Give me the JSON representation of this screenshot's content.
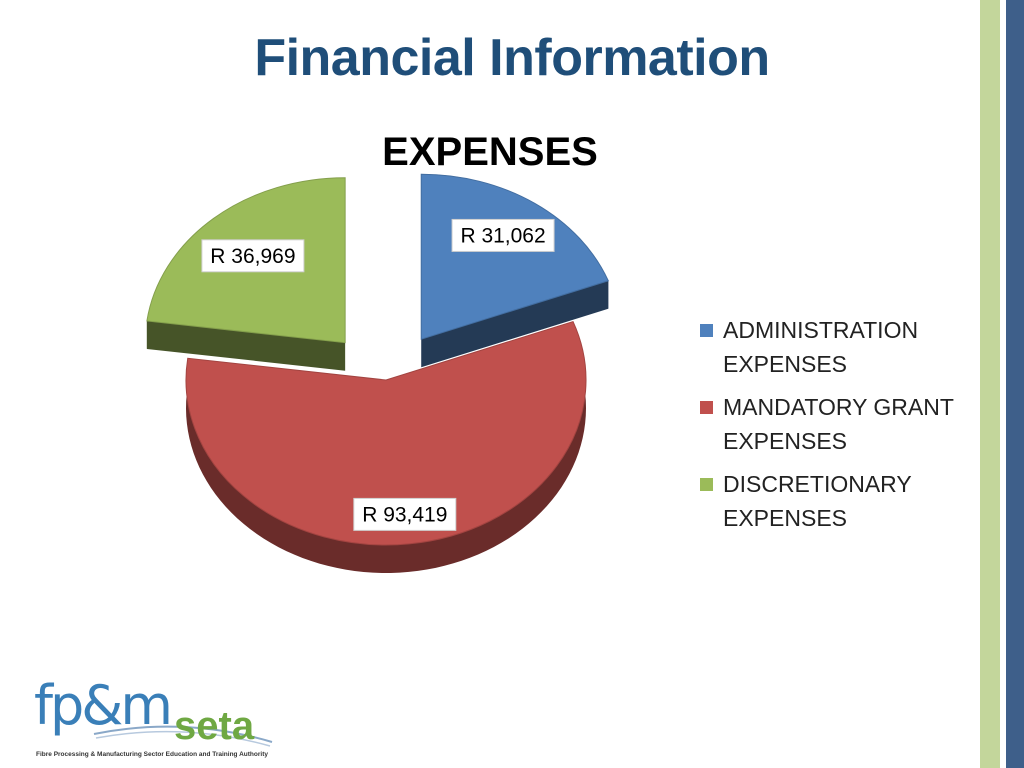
{
  "slide": {
    "title": "Financial Information"
  },
  "chart_data": {
    "type": "pie",
    "title": "EXPENSES",
    "exploded": true,
    "three_d": true,
    "categories": [
      "ADMINISTRATION EXPENSES",
      "MANDATORY GRANT EXPENSES",
      "DISCRETIONARY EXPENSES"
    ],
    "values": [
      31062,
      93419,
      36969
    ],
    "data_labels": [
      "R 31,062",
      "R 93,419",
      "R 36,969"
    ],
    "colors": [
      "#4f81bd",
      "#c0504d",
      "#9bbb59"
    ],
    "legend_position": "right"
  },
  "legend": {
    "items": [
      {
        "label": "ADMINISTRATION EXPENSES",
        "color": "#4f81bd"
      },
      {
        "label": "MANDATORY GRANT EXPENSES",
        "color": "#c0504d"
      },
      {
        "label": "DISCRETIONARY EXPENSES",
        "color": "#9bbb59"
      }
    ]
  },
  "logo": {
    "primary_text": "fp&m",
    "secondary_text": "seta",
    "tagline": "Fibre Processing & Manufacturing Sector Education and Training Authority"
  },
  "theme": {
    "strip_light": "#c3d69b",
    "strip_dark": "#3e5f8a"
  }
}
